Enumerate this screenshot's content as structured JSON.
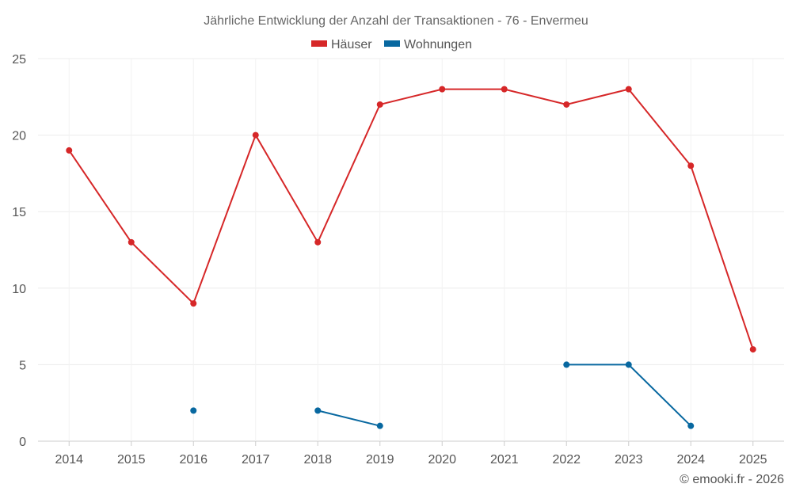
{
  "chart_data": {
    "type": "line",
    "title": "Jährliche Entwicklung der Anzahl der Transaktionen - 76 - Envermeu",
    "categories": [
      "2014",
      "2015",
      "2016",
      "2017",
      "2018",
      "2019",
      "2020",
      "2021",
      "2022",
      "2023",
      "2024",
      "2025"
    ],
    "series": [
      {
        "name": "Häuser",
        "color": "#d62728",
        "values": [
          19,
          13,
          9,
          20,
          13,
          22,
          23,
          23,
          22,
          23,
          18,
          6
        ]
      },
      {
        "name": "Wohnungen",
        "color": "#0868a0",
        "values": [
          null,
          null,
          2,
          null,
          2,
          1,
          null,
          null,
          5,
          5,
          1,
          null
        ]
      }
    ],
    "ylim": [
      0,
      25
    ],
    "yticks": [
      "0",
      "5",
      "10",
      "15",
      "20",
      "25"
    ],
    "grid": true,
    "legend": "top-center",
    "xlabel": "",
    "ylabel": ""
  },
  "credit": "© emooki.fr - 2026"
}
